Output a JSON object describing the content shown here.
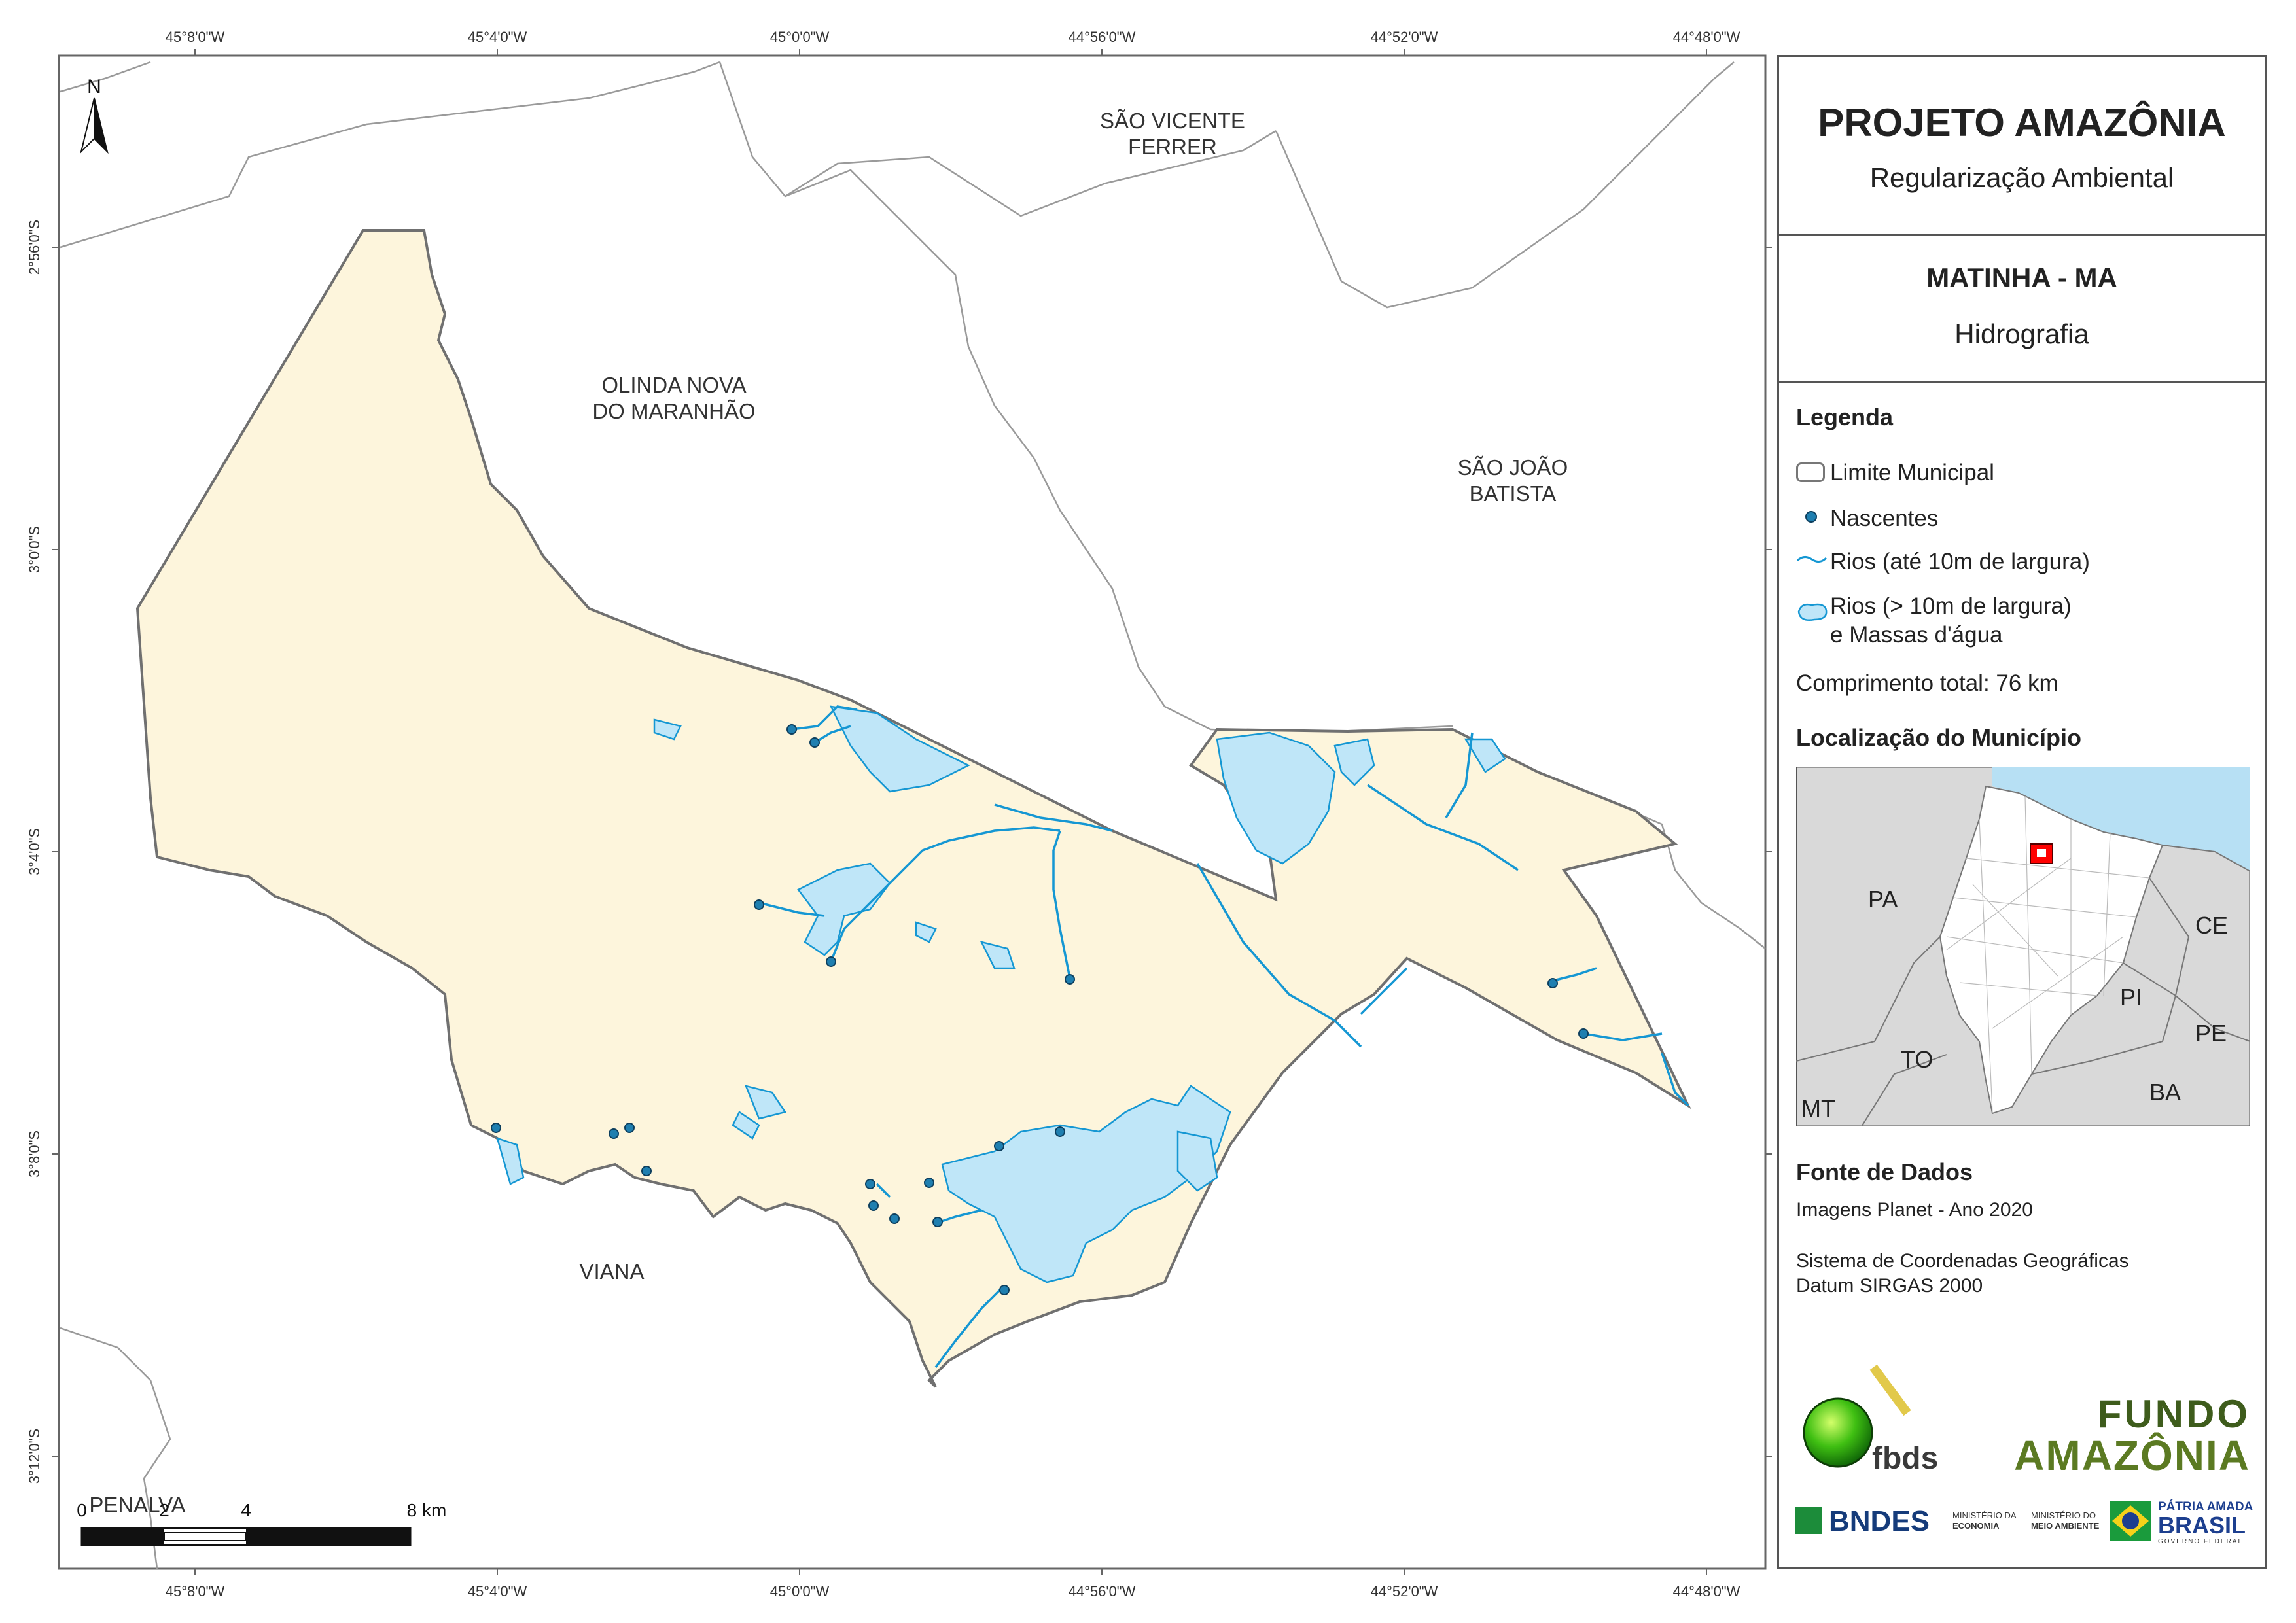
{
  "header": {
    "title": "PROJETO AMAZÔNIA",
    "subtitle": "Regularização Ambiental"
  },
  "map_info": {
    "municipality": "MATINHA - MA",
    "theme": "Hidrografia"
  },
  "legend": {
    "heading": "Legenda",
    "items": [
      {
        "label": "Limite Municipal",
        "icon": "municipal-limit-swatch"
      },
      {
        "label": "Nascentes",
        "icon": "spring-point-symbol"
      },
      {
        "label": "Rios (até 10m de largura)",
        "icon": "river-line-symbol"
      },
      {
        "label": "Rios (> 10m de largura)",
        "label2": "e Massas d'água",
        "icon": "water-body-swatch"
      }
    ],
    "total_length_label": "Comprimento total:",
    "total_length_value": "76 km"
  },
  "location": {
    "heading": "Localização do Município",
    "states": [
      "PA",
      "CE",
      "PI",
      "PE",
      "TO",
      "BA",
      "MT"
    ]
  },
  "sources": {
    "heading": "Fonte de Dados",
    "line1": "Imagens Planet - Ano 2020",
    "line2": "Sistema de Coordenadas Geográficas",
    "line3": "Datum SIRGAS 2000"
  },
  "logos": {
    "fbds": "fbds",
    "fundo_line1": "FUNDO",
    "fundo_line2": "AMAZÔNIA",
    "bndes": "BNDES",
    "min_economia_1": "MINISTÉRIO DA",
    "min_economia_2": "ECONOMIA",
    "min_ambiente_1": "MINISTÉRIO DO",
    "min_ambiente_2": "MEIO AMBIENTE",
    "patria_1": "PÁTRIA AMADA",
    "patria_2": "BRASIL",
    "patria_3": "GOVERNO FEDERAL"
  },
  "map": {
    "north_label": "N",
    "lon_ticks": [
      "45°8'0\"W",
      "45°4'0\"W",
      "45°0'0\"W",
      "44°56'0\"W",
      "44°52'0\"W",
      "44°48'0\"W"
    ],
    "lat_ticks": [
      "2°56'0\"S",
      "3°0'0\"S",
      "3°4'0\"S",
      "3°8'0\"S",
      "3°12'0\"S"
    ],
    "places": {
      "sao_vicente_1": "SÃO VICENTE",
      "sao_vicente_2": "FERRER",
      "olinda_1": "OLINDA NOVA",
      "olinda_2": "DO MARANHÃO",
      "sao_joao_1": "SÃO JOÃO",
      "sao_joao_2": "BATISTA",
      "viana": "VIANA",
      "penalva": "PENALVA"
    },
    "scale": {
      "labels": [
        "0",
        "2",
        "4",
        "8 km"
      ]
    }
  },
  "colors": {
    "municipality_fill": "#fdf5dc",
    "boundary": "#707070",
    "water_fill": "#bfe6f8",
    "river": "#1597d3",
    "spring": "#1f7fb0",
    "ocean": "#b7e0f4",
    "state_fill": "#d9d9d9",
    "highlight": "#ff0000"
  }
}
